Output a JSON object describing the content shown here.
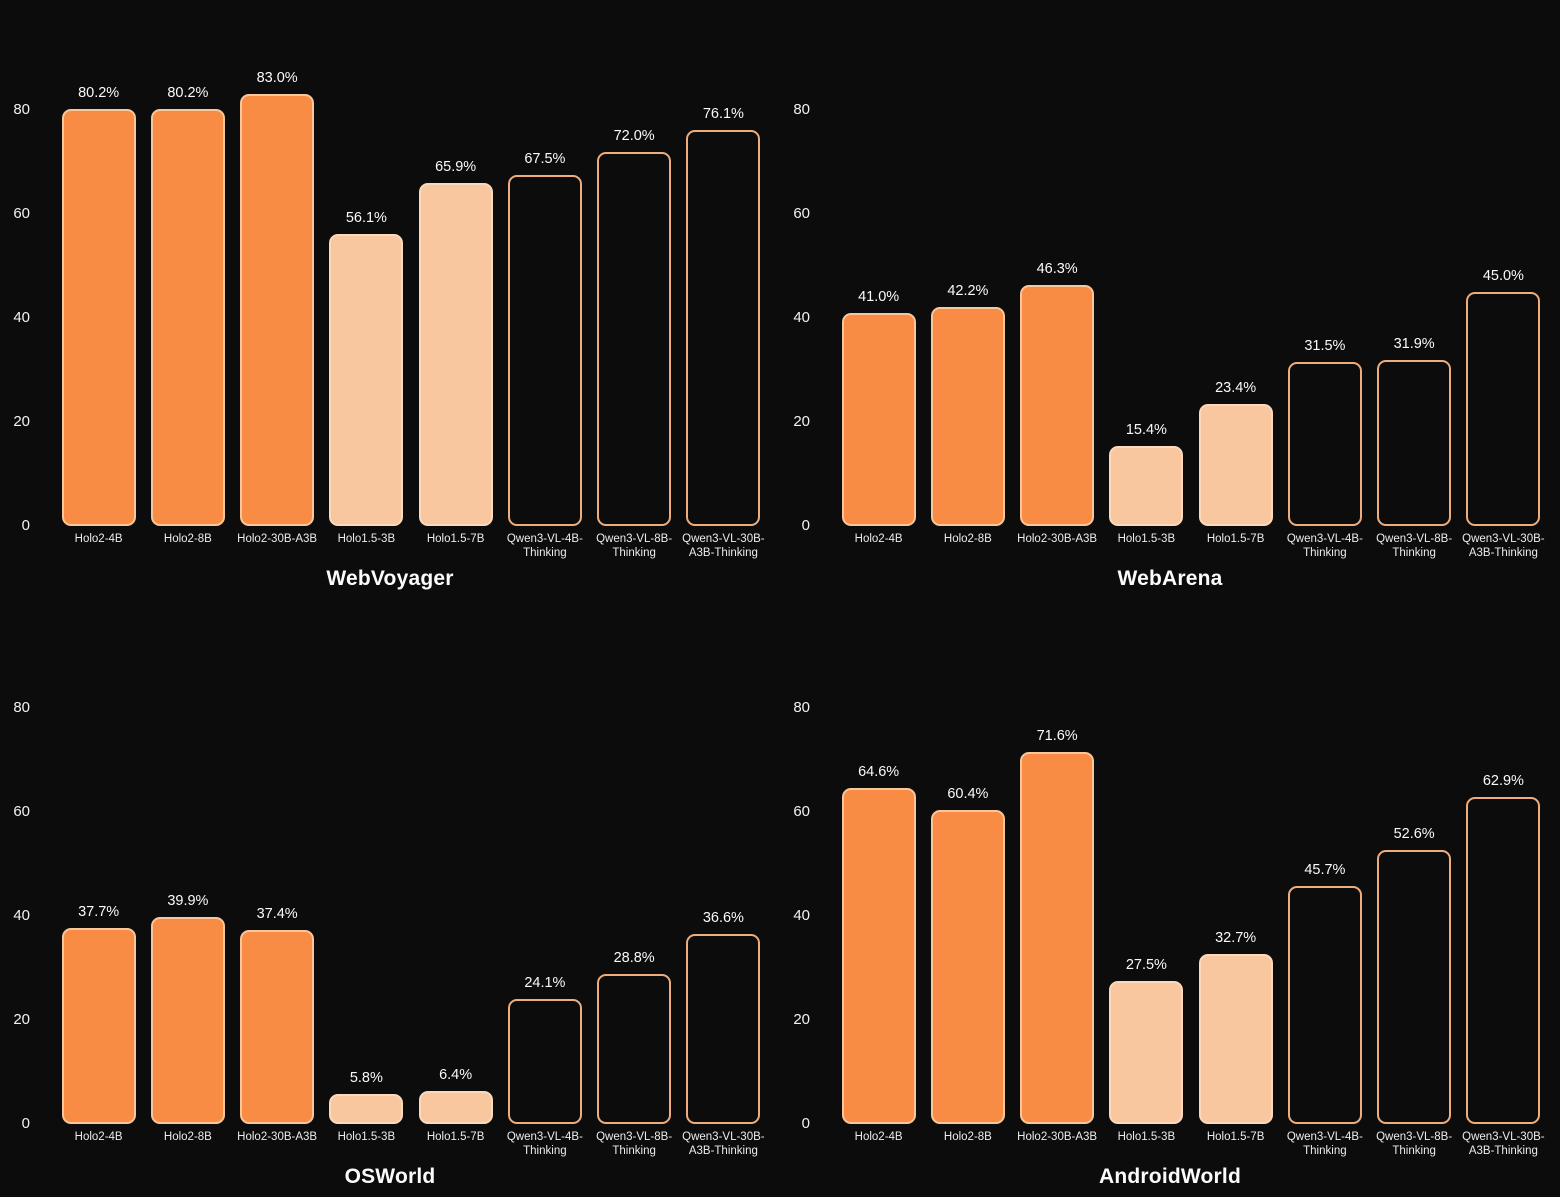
{
  "colors": {
    "background": "#0c0c0c",
    "text_primary": "#fafafa",
    "text_secondary": "#ececec",
    "solid_bar_fill": "#f88c45",
    "solid_bar_border": "#f9c69a",
    "light_bar_fill": "#f8c7a0",
    "light_bar_border": "#fbd9bb",
    "outline_bar_fill": "#0c0c0c",
    "outline_bar_border": "#edad7c"
  },
  "bar_style_names": [
    "solid",
    "solid",
    "solid",
    "light",
    "light",
    "outline",
    "outline",
    "outline"
  ],
  "chart_data": [
    {
      "type": "bar",
      "title": "WebVoyager",
      "xlabel": "",
      "ylabel": "",
      "ylim": [
        0,
        86
      ],
      "grid": false,
      "legend": "none",
      "yticks": [
        0,
        20,
        40,
        60,
        80
      ],
      "categories": [
        "Holo2-4B",
        "Holo2-8B",
        "Holo2-30B-A3B",
        "Holo1.5-3B",
        "Holo1.5-7B",
        "Qwen3-VL-4B-Thinking",
        "Qwen3-VL-8B-Thinking",
        "Qwen3-VL-30B-A3B-Thinking"
      ],
      "category_lines": [
        [
          "Holo2-4B"
        ],
        [
          "Holo2-8B"
        ],
        [
          "Holo2-30B-A3B"
        ],
        [
          "Holo1.5-3B"
        ],
        [
          "Holo1.5-7B"
        ],
        [
          "Qwen3-VL-4B-",
          "Thinking"
        ],
        [
          "Qwen3-VL-8B-",
          "Thinking"
        ],
        [
          "Qwen3-VL-30B-",
          "A3B-Thinking"
        ]
      ],
      "values": [
        80.2,
        80.2,
        83.0,
        56.1,
        65.9,
        67.5,
        72.0,
        76.1
      ],
      "value_labels": [
        "80.2%",
        "80.2%",
        "83.0%",
        "56.1%",
        "65.9%",
        "67.5%",
        "72.0%",
        "76.1%"
      ]
    },
    {
      "type": "bar",
      "title": "WebArena",
      "xlabel": "",
      "ylabel": "",
      "ylim": [
        0,
        86
      ],
      "grid": false,
      "legend": "none",
      "yticks": [
        0,
        20,
        40,
        60,
        80
      ],
      "categories": [
        "Holo2-4B",
        "Holo2-8B",
        "Holo2-30B-A3B",
        "Holo1.5-3B",
        "Holo1.5-7B",
        "Qwen3-VL-4B-Thinking",
        "Qwen3-VL-8B-Thinking",
        "Qwen3-VL-30B-A3B-Thinking"
      ],
      "category_lines": [
        [
          "Holo2-4B"
        ],
        [
          "Holo2-8B"
        ],
        [
          "Holo2-30B-A3B"
        ],
        [
          "Holo1.5-3B"
        ],
        [
          "Holo1.5-7B"
        ],
        [
          "Qwen3-VL-4B-",
          "Thinking"
        ],
        [
          "Qwen3-VL-8B-",
          "Thinking"
        ],
        [
          "Qwen3-VL-30B-",
          "A3B-Thinking"
        ]
      ],
      "values": [
        41.0,
        42.2,
        46.3,
        15.4,
        23.4,
        31.5,
        31.9,
        45.0
      ],
      "value_labels": [
        "41.0%",
        "42.2%",
        "46.3%",
        "15.4%",
        "23.4%",
        "31.5%",
        "31.9%",
        "45.0%"
      ]
    },
    {
      "type": "bar",
      "title": "OSWorld",
      "xlabel": "",
      "ylabel": "",
      "ylim": [
        0,
        86
      ],
      "grid": false,
      "legend": "none",
      "yticks": [
        0,
        20,
        40,
        60,
        80
      ],
      "categories": [
        "Holo2-4B",
        "Holo2-8B",
        "Holo2-30B-A3B",
        "Holo1.5-3B",
        "Holo1.5-7B",
        "Qwen3-VL-4B-Thinking",
        "Qwen3-VL-8B-Thinking",
        "Qwen3-VL-30B-A3B-Thinking"
      ],
      "category_lines": [
        [
          "Holo2-4B"
        ],
        [
          "Holo2-8B"
        ],
        [
          "Holo2-30B-A3B"
        ],
        [
          "Holo1.5-3B"
        ],
        [
          "Holo1.5-7B"
        ],
        [
          "Qwen3-VL-4B-",
          "Thinking"
        ],
        [
          "Qwen3-VL-8B-",
          "Thinking"
        ],
        [
          "Qwen3-VL-30B-",
          "A3B-Thinking"
        ]
      ],
      "values": [
        37.7,
        39.9,
        37.4,
        5.8,
        6.4,
        24.1,
        28.8,
        36.6
      ],
      "value_labels": [
        "37.7%",
        "39.9%",
        "37.4%",
        "5.8%",
        "6.4%",
        "24.1%",
        "28.8%",
        "36.6%"
      ]
    },
    {
      "type": "bar",
      "title": "AndroidWorld",
      "xlabel": "",
      "ylabel": "",
      "ylim": [
        0,
        86
      ],
      "grid": false,
      "legend": "none",
      "yticks": [
        0,
        20,
        40,
        60,
        80
      ],
      "categories": [
        "Holo2-4B",
        "Holo2-8B",
        "Holo2-30B-A3B",
        "Holo1.5-3B",
        "Holo1.5-7B",
        "Qwen3-VL-4B-Thinking",
        "Qwen3-VL-8B-Thinking",
        "Qwen3-VL-30B-A3B-Thinking"
      ],
      "category_lines": [
        [
          "Holo2-4B"
        ],
        [
          "Holo2-8B"
        ],
        [
          "Holo2-30B-A3B"
        ],
        [
          "Holo1.5-3B"
        ],
        [
          "Holo1.5-7B"
        ],
        [
          "Qwen3-VL-4B-",
          "Thinking"
        ],
        [
          "Qwen3-VL-8B-",
          "Thinking"
        ],
        [
          "Qwen3-VL-30B-",
          "A3B-Thinking"
        ]
      ],
      "values": [
        64.6,
        60.4,
        71.6,
        27.5,
        32.7,
        45.7,
        52.6,
        62.9
      ],
      "value_labels": [
        "64.6%",
        "60.4%",
        "71.6%",
        "27.5%",
        "32.7%",
        "45.7%",
        "52.6%",
        "62.9%"
      ]
    }
  ]
}
